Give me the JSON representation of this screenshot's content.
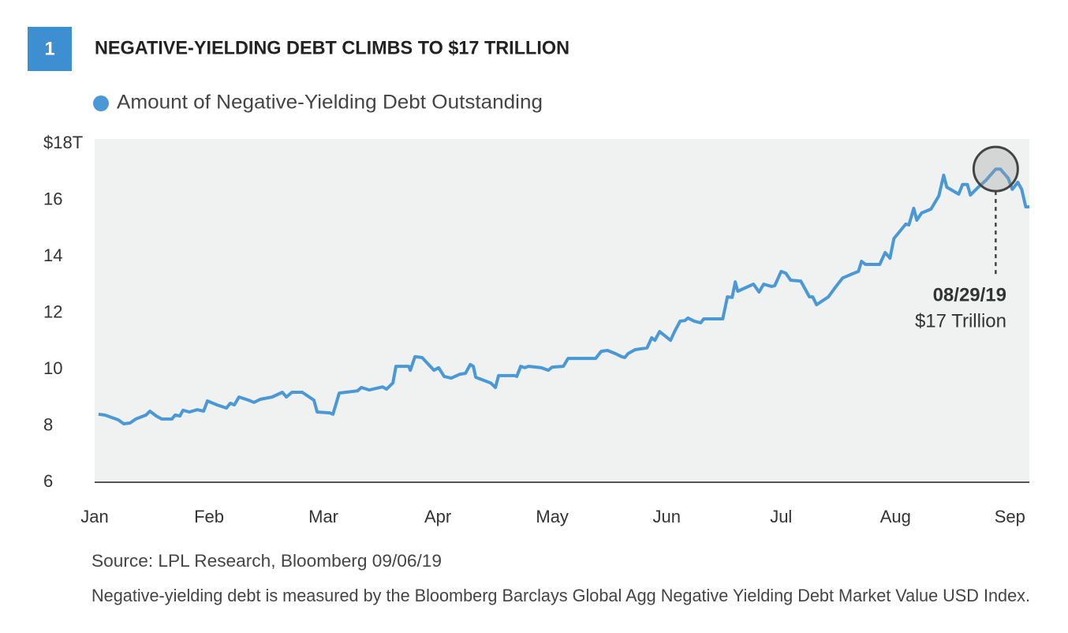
{
  "badge": "1",
  "chart_data": {
    "type": "line",
    "title": "NEGATIVE-YIELDING DEBT CLIMBS TO $17 TRILLION",
    "series": [
      {
        "name": "Amount of Negative-Yielding Debt Outstanding",
        "color": "#4a98d6",
        "x": [
          0.034,
          0.09,
          0.207,
          0.255,
          0.31,
          0.359,
          0.448,
          0.483,
          0.538,
          0.586,
          0.676,
          0.703,
          0.745,
          0.772,
          0.828,
          0.897,
          0.952,
          0.986,
          1.069,
          1.152,
          1.186,
          1.221,
          1.262,
          1.345,
          1.393,
          1.448,
          1.552,
          1.641,
          1.676,
          1.724,
          1.814,
          1.917,
          1.945,
          2.055,
          2.083,
          2.138,
          2.297,
          2.331,
          2.4,
          2.517,
          2.552,
          2.607,
          2.634,
          2.745,
          2.759,
          2.8,
          2.862,
          2.966,
          3.007,
          3.055,
          3.117,
          3.193,
          3.241,
          3.283,
          3.31,
          3.331,
          3.462,
          3.503,
          3.531,
          3.669,
          3.69,
          3.724,
          3.759,
          3.793,
          3.903,
          3.966,
          4.0,
          4.097,
          4.138,
          4.379,
          4.428,
          4.483,
          4.552,
          4.607,
          4.634,
          4.662,
          4.724,
          4.828,
          4.869,
          4.897,
          4.938,
          5.034,
          5.069,
          5.117,
          5.159,
          5.186,
          5.241,
          5.297,
          5.324,
          5.414,
          5.49,
          5.531,
          5.572,
          5.6,
          5.621,
          5.759,
          5.807,
          5.848,
          5.917,
          5.945,
          6.0,
          6.041,
          6.083,
          6.172,
          6.248,
          6.276,
          6.31,
          6.414,
          6.469,
          6.538,
          6.607,
          6.676,
          6.703,
          6.738,
          6.862,
          6.91,
          6.952,
          6.986,
          7.09,
          7.117,
          7.159,
          7.186,
          7.228,
          7.31,
          7.379,
          7.421,
          7.448,
          7.552,
          7.586,
          7.628,
          7.655,
          7.724,
          7.793,
          7.876,
          7.917,
          7.986,
          8.021,
          8.069,
          8.103,
          8.138,
          8.17
        ],
        "values": [
          8.41,
          8.38,
          8.21,
          8.07,
          8.1,
          8.24,
          8.38,
          8.52,
          8.35,
          8.24,
          8.24,
          8.38,
          8.35,
          8.55,
          8.49,
          8.57,
          8.52,
          8.88,
          8.74,
          8.63,
          8.8,
          8.74,
          9.02,
          8.91,
          8.83,
          8.94,
          9.02,
          9.19,
          9.02,
          9.19,
          9.19,
          8.91,
          8.49,
          8.46,
          8.41,
          9.16,
          9.24,
          9.36,
          9.27,
          9.38,
          9.3,
          9.52,
          10.11,
          10.11,
          9.97,
          10.45,
          10.42,
          9.97,
          10.06,
          9.75,
          9.69,
          9.83,
          9.86,
          10.17,
          10.11,
          9.72,
          9.52,
          9.36,
          9.78,
          9.78,
          9.75,
          10.11,
          10.06,
          10.11,
          10.06,
          9.97,
          10.08,
          10.11,
          10.39,
          10.39,
          10.64,
          10.67,
          10.56,
          10.45,
          10.42,
          10.56,
          10.7,
          10.76,
          11.12,
          11.03,
          11.34,
          11.03,
          11.34,
          11.71,
          11.73,
          11.82,
          11.71,
          11.65,
          11.79,
          11.79,
          11.79,
          12.57,
          12.55,
          13.1,
          12.77,
          13.02,
          12.74,
          13.02,
          12.94,
          12.97,
          13.47,
          13.41,
          13.16,
          13.13,
          12.57,
          12.57,
          12.29,
          12.57,
          12.88,
          13.24,
          13.36,
          13.47,
          13.83,
          13.72,
          13.72,
          14.14,
          13.94,
          14.64,
          15.15,
          15.12,
          15.71,
          15.29,
          15.54,
          15.68,
          16.15,
          16.88,
          16.46,
          16.21,
          16.55,
          16.55,
          16.18,
          16.46,
          16.71,
          17.1,
          17.1,
          16.77,
          16.38,
          16.63,
          16.38,
          15.76,
          15.76
        ]
      }
    ],
    "xlim": [
      0,
      8.17
    ],
    "xticks": [
      {
        "value": 0,
        "label": "Jan"
      },
      {
        "value": 1,
        "label": "Feb"
      },
      {
        "value": 2,
        "label": "Mar"
      },
      {
        "value": 3,
        "label": "Apr"
      },
      {
        "value": 4,
        "label": "May"
      },
      {
        "value": 5,
        "label": "Jun"
      },
      {
        "value": 6,
        "label": "Jul"
      },
      {
        "value": 7,
        "label": "Aug"
      },
      {
        "value": 8,
        "label": "Sep"
      }
    ],
    "ylim": [
      6,
      18
    ],
    "yticks": [
      6,
      8,
      10,
      12,
      14,
      16,
      {
        "value": 18,
        "label": "$18T"
      }
    ],
    "annotation": {
      "date": "08/29/19",
      "text": "$17 Trillion",
      "x": 7.876,
      "y": 17.1
    }
  },
  "source": "Source: LPL Research, Bloomberg   09/06/19",
  "note": "Negative-yielding debt is measured by the Bloomberg Barclays Global Agg Negative Yielding Debt Market Value USD Index."
}
